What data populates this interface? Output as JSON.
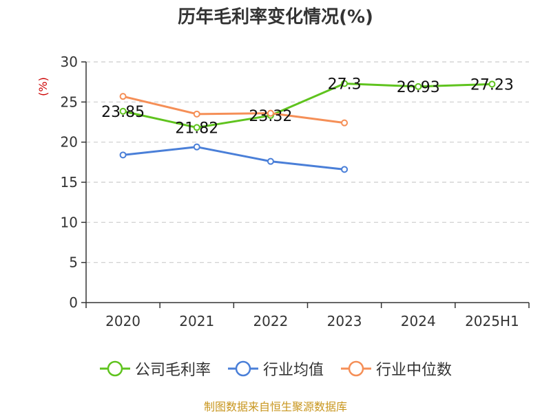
{
  "chart_data": {
    "type": "line",
    "title": "历年毛利率变化情况(%)",
    "ylabel": "(%)",
    "categories": [
      "2020",
      "2021",
      "2022",
      "2023",
      "2024",
      "2025H1"
    ],
    "ylim": [
      0,
      30
    ],
    "yticks": [
      0,
      5,
      10,
      15,
      20,
      25,
      30
    ],
    "grid": true,
    "legend_position": "bottom",
    "series": [
      {
        "name": "公司毛利率",
        "color": "#5fc31e",
        "values": [
          23.85,
          21.82,
          23.32,
          27.3,
          26.93,
          27.23
        ],
        "labels": [
          "23.85",
          "21.82",
          "23.32",
          "27.3",
          "26.93",
          "27.23"
        ]
      },
      {
        "name": "行业均值",
        "color": "#4a7fd8",
        "values": [
          18.4,
          19.4,
          17.6,
          16.6,
          null,
          null
        ]
      },
      {
        "name": "行业中位数",
        "color": "#f58f57",
        "values": [
          25.7,
          23.5,
          23.6,
          22.4,
          null,
          null
        ]
      }
    ],
    "source": "制图数据来自恒生聚源数据库"
  }
}
